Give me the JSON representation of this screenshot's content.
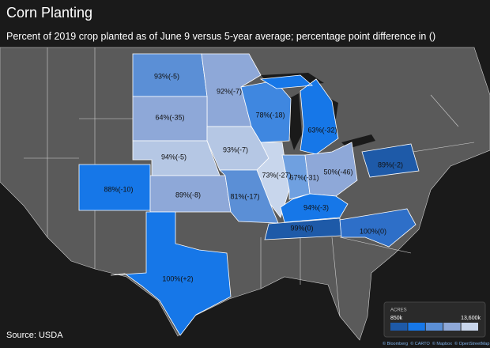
{
  "title": "Corn Planting",
  "subtitle": "Percent of 2019 crop planted as of June 9 versus 5-year average; percentage point difference in ()",
  "source": "Source: USDA",
  "states": [
    {
      "label": "93%(-5)",
      "color": "#5b8fd6"
    },
    {
      "label": "92%(-7)",
      "color": "#8ea8d8"
    },
    {
      "label": "64%(-35)",
      "color": "#8ea8d8"
    },
    {
      "label": "78%(-18)",
      "color": "#3f87e0"
    },
    {
      "label": "63%(-32)",
      "color": "#1677e8"
    },
    {
      "label": "94%(-5)",
      "color": "#b5c7e4"
    },
    {
      "label": "93%(-7)",
      "color": "#b5c7e4"
    },
    {
      "label": "73%(-27)",
      "color": "#c8d6ec"
    },
    {
      "label": "67%(-31)",
      "color": "#6fa0e0"
    },
    {
      "label": "50%(-46)",
      "color": "#8ea8d8"
    },
    {
      "label": "88%(-10)",
      "color": "#1677e8"
    },
    {
      "label": "89%(-8)",
      "color": "#8ea8d8"
    },
    {
      "label": "81%(-17)",
      "color": "#5b8fd6"
    },
    {
      "label": "94%(-3)",
      "color": "#1677e8"
    },
    {
      "label": "89%(-2)",
      "color": "#1e5aa8"
    },
    {
      "label": "99%(0)",
      "color": "#1e5aa8"
    },
    {
      "label": "100%(0)",
      "color": "#2e6fc8"
    },
    {
      "label": "100%(+2)",
      "color": "#1677e8"
    }
  ],
  "legend": {
    "title": "ACRES",
    "min_label": "850k",
    "max_label": "13,600k",
    "colors": [
      "#1e5aa8",
      "#1677e8",
      "#5b8fd6",
      "#8ea8d8",
      "#c8d6ec"
    ]
  },
  "attribution": [
    "© Bloomberg",
    "© CARTO",
    "© Mapbox",
    "© OpenStreetMap"
  ]
}
